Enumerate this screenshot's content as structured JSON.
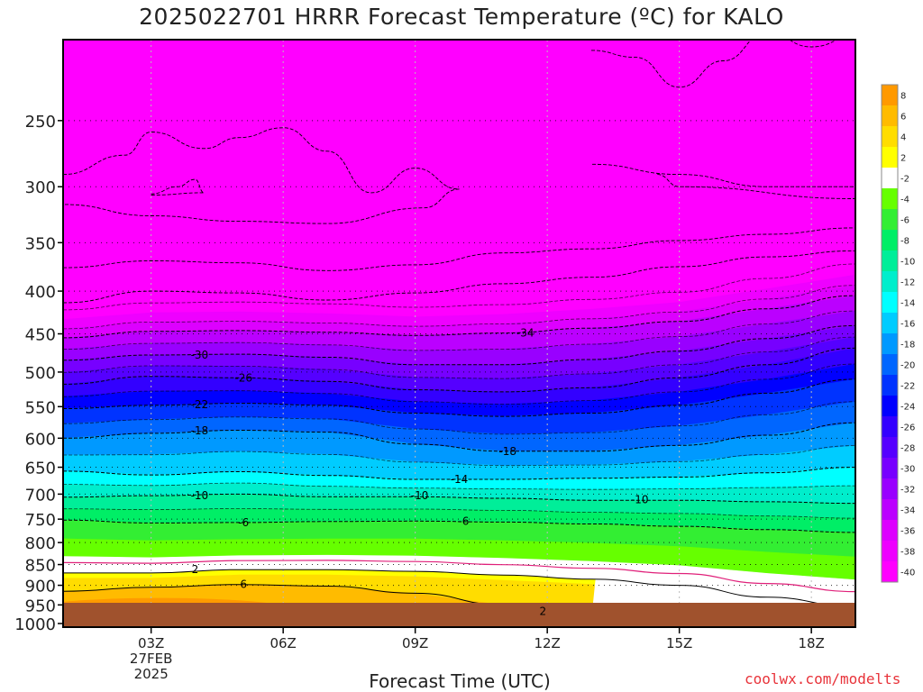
{
  "chart_data": {
    "type": "heatmap",
    "title": "2025022701 HRRR Forecast Temperature (ºC) for KALO",
    "xlabel": "Forecast Time (UTC)",
    "ylabel": "",
    "x_ticks": [
      "03Z",
      "06Z",
      "09Z",
      "12Z",
      "15Z",
      "18Z"
    ],
    "x_tick_date": [
      "27FEB",
      "2025"
    ],
    "x_range_hours": [
      1,
      19
    ],
    "y_ticks": [
      250,
      300,
      350,
      400,
      450,
      500,
      550,
      600,
      650,
      700,
      750,
      800,
      850,
      900,
      950,
      1000
    ],
    "y_range_hpa": [
      1010,
      200
    ],
    "y_scale": "log",
    "grid": true,
    "colorbar": {
      "labels": [
        "8",
        "6",
        "4",
        "2",
        "-2",
        "-4",
        "-6",
        "-8",
        "-10",
        "-12",
        "-14",
        "-16",
        "-18",
        "-20",
        "-22",
        "-24",
        "-26",
        "-28",
        "-30",
        "-32",
        "-34",
        "-36",
        "-38",
        "-40"
      ],
      "colors": [
        "#ff9900",
        "#ffbb00",
        "#ffdd00",
        "#ffff00",
        "#ffffff",
        "#66ff00",
        "#33ee33",
        "#00ee66",
        "#00ee99",
        "#00eecc",
        "#00ffff",
        "#00ccff",
        "#0099ff",
        "#0066ff",
        "#0033ff",
        "#0000ff",
        "#3300ff",
        "#5500ff",
        "#7700ff",
        "#9900ff",
        "#bb00ff",
        "#dd00ff",
        "#ee00ff",
        "#ff00ff"
      ]
    },
    "contours": [
      {
        "value": "-34",
        "times": [
          1,
          3,
          5,
          7,
          9,
          11,
          13,
          15,
          17,
          19
        ],
        "pressure": [
          455,
          447,
          446,
          448,
          452,
          449,
          443,
          435,
          420,
          405
        ]
      },
      {
        "value": "-30",
        "times": [
          1,
          3,
          5,
          7,
          9,
          11,
          13,
          15,
          17,
          19
        ],
        "pressure": [
          484,
          477,
          476,
          480,
          490,
          490,
          483,
          472,
          456,
          440
        ]
      },
      {
        "value": "-26",
        "times": [
          1,
          3,
          5,
          7,
          9,
          11,
          13,
          15,
          17,
          19
        ],
        "pressure": [
          517,
          506,
          508,
          513,
          525,
          528,
          522,
          508,
          490,
          468
        ]
      },
      {
        "value": "-22",
        "times": [
          1,
          3,
          5,
          7,
          9,
          11,
          13,
          15,
          17,
          19
        ],
        "pressure": [
          553,
          548,
          545,
          548,
          560,
          565,
          560,
          548,
          530,
          510
        ]
      },
      {
        "value": "-18",
        "times": [
          1,
          3,
          5,
          7,
          9,
          11,
          13,
          15,
          17,
          19
        ],
        "pressure": [
          600,
          592,
          587,
          590,
          610,
          622,
          622,
          612,
          595,
          575
        ]
      },
      {
        "value": "-14",
        "times": [
          1,
          3,
          5,
          7,
          9,
          11,
          13,
          15,
          17,
          19
        ],
        "pressure": [
          657,
          664,
          658,
          665,
          672,
          672,
          670,
          668,
          660,
          650
        ]
      },
      {
        "value": "-10",
        "times": [
          1,
          3,
          5,
          7,
          9,
          11,
          13,
          15,
          17,
          19
        ],
        "pressure": [
          706,
          703,
          700,
          705,
          705,
          708,
          712,
          712,
          715,
          718
        ]
      },
      {
        "value": "-6",
        "times": [
          1,
          3,
          5,
          7,
          9,
          11,
          13,
          15,
          17,
          19
        ],
        "pressure": [
          752,
          758,
          757,
          755,
          754,
          756,
          760,
          765,
          772,
          778
        ]
      },
      {
        "value": "2",
        "times": [
          1,
          3,
          5,
          7,
          9,
          11,
          13,
          15,
          17,
          19
        ],
        "pressure": [
          870,
          870,
          862,
          862,
          866,
          875,
          885,
          900,
          930,
          955
        ]
      },
      {
        "value": "6",
        "times": [
          1,
          3,
          5,
          7,
          9,
          11,
          13,
          15,
          17,
          19
        ],
        "pressure": [
          915,
          905,
          898,
          902,
          920,
          950,
          0,
          0,
          0,
          0
        ]
      }
    ],
    "contour_labels": [
      {
        "value": "-34",
        "time": 11.5,
        "pressure": 449
      },
      {
        "value": "-30",
        "time": 4.1,
        "pressure": 477
      },
      {
        "value": "-26",
        "time": 5.1,
        "pressure": 508
      },
      {
        "value": "-22",
        "time": 4.1,
        "pressure": 547
      },
      {
        "value": "-18",
        "time": 4.1,
        "pressure": 588
      },
      {
        "value": "-18",
        "time": 11.1,
        "pressure": 622
      },
      {
        "value": "-14",
        "time": 10.0,
        "pressure": 672
      },
      {
        "value": "-10",
        "time": 4.1,
        "pressure": 703
      },
      {
        "value": "-10",
        "time": 9.1,
        "pressure": 703
      },
      {
        "value": "-10",
        "time": 14.1,
        "pressure": 711
      },
      {
        "value": "-6",
        "time": 5.1,
        "pressure": 757
      },
      {
        "value": "-6",
        "time": 10.1,
        "pressure": 754
      },
      {
        "value": "2",
        "time": 4.0,
        "pressure": 862
      },
      {
        "value": "6",
        "time": 5.1,
        "pressure": 898
      },
      {
        "value": "2",
        "time": 11.9,
        "pressure": 967
      }
    ],
    "credit": "coolwx.com/modelts"
  }
}
